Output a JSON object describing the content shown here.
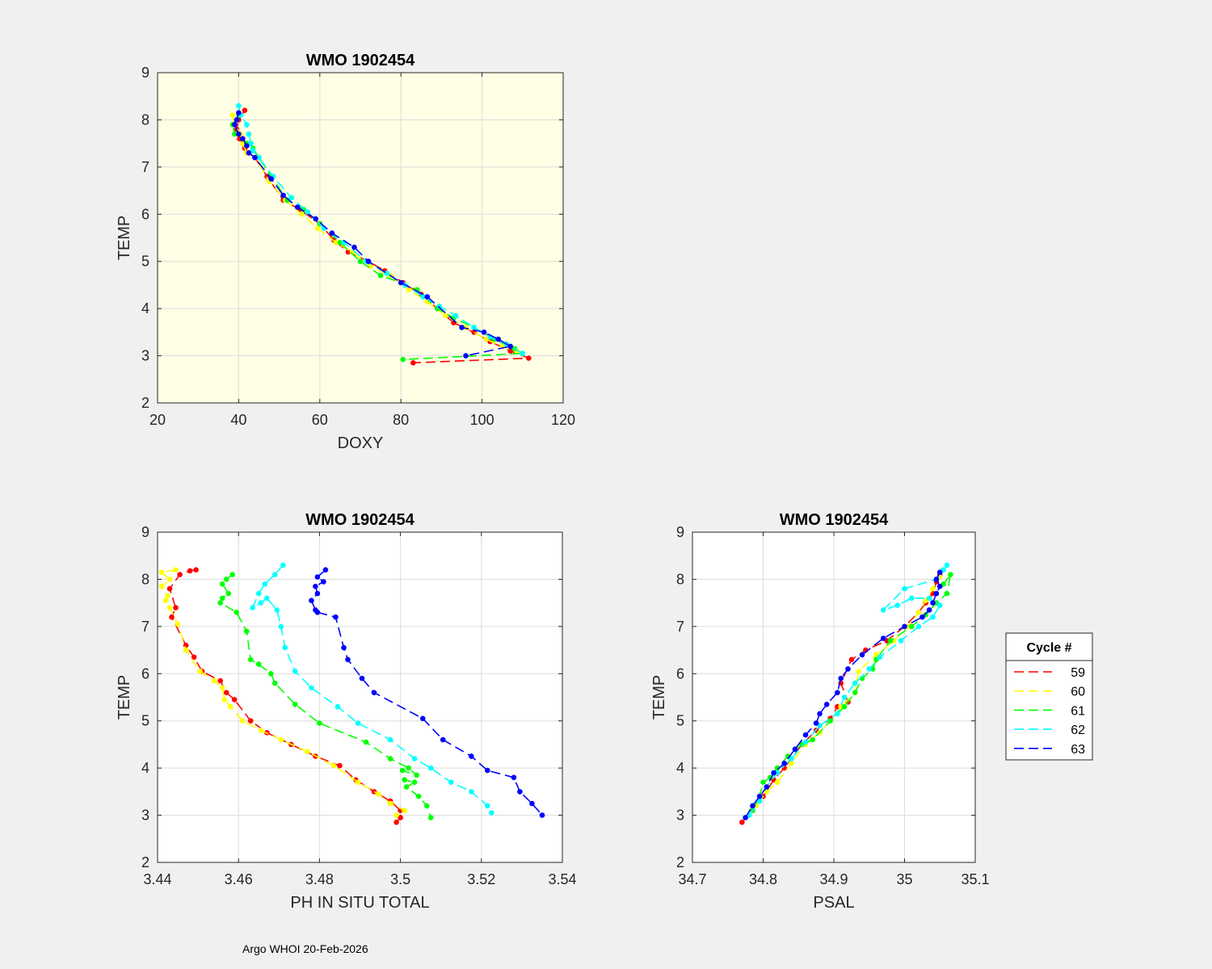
{
  "footer": "Argo WHOI 20-Feb-2026",
  "legend": {
    "title": "Cycle #",
    "entries": [
      {
        "label": "59",
        "color": "#ff0000"
      },
      {
        "label": "60",
        "color": "#ffff00"
      },
      {
        "label": "61",
        "color": "#00ff00"
      },
      {
        "label": "62",
        "color": "#00ffff"
      },
      {
        "label": "63",
        "color": "#0000ff"
      }
    ]
  },
  "chart_data": [
    {
      "type": "line",
      "title": "WMO 1902454",
      "xlabel": "DOXY",
      "ylabel": "TEMP",
      "xlim": [
        20,
        120
      ],
      "ylim": [
        2,
        9
      ],
      "xticks": [
        "20",
        "40",
        "60",
        "80",
        "100",
        "120"
      ],
      "yticks": [
        "2",
        "3",
        "4",
        "5",
        "6",
        "7",
        "8",
        "9"
      ],
      "background": "#ffffe5",
      "grid": true,
      "series": [
        {
          "name": "59",
          "color": "#ff0000",
          "x": [
            41.5,
            40.0,
            39.5,
            40.2,
            41.5,
            42.5,
            44.0,
            47.0,
            51.0,
            55.0,
            60.0,
            63.5,
            67.0,
            72.0,
            76.0,
            80.5,
            85.0,
            89.0,
            93.0,
            98.0,
            102.0,
            107.0,
            111.5,
            83.0
          ],
          "y": [
            8.2,
            8.0,
            7.8,
            7.6,
            7.4,
            7.3,
            7.2,
            6.8,
            6.3,
            6.1,
            5.8,
            5.45,
            5.2,
            5.0,
            4.8,
            4.55,
            4.3,
            4.0,
            3.7,
            3.5,
            3.3,
            3.1,
            2.95,
            2.85
          ]
        },
        {
          "name": "60",
          "color": "#ffff00",
          "x": [
            38.5,
            39.0,
            40.5,
            41.0,
            42.0,
            44.0,
            47.5,
            51.5,
            55.5,
            59.5,
            64.0,
            68.0,
            72.5,
            77.5,
            82.0,
            86.5,
            91.0,
            96.0,
            101.0,
            105.0,
            108.5
          ],
          "y": [
            8.1,
            7.9,
            7.7,
            7.5,
            7.3,
            7.2,
            6.7,
            6.3,
            6.0,
            5.7,
            5.4,
            5.2,
            4.9,
            4.7,
            4.4,
            4.15,
            3.85,
            3.6,
            3.35,
            3.2,
            3.1
          ]
        },
        {
          "name": "61",
          "color": "#00ff00",
          "x": [
            40.0,
            38.5,
            39.0,
            41.0,
            42.0,
            43.5,
            45.0,
            48.0,
            52.0,
            56.0,
            60.0,
            65.0,
            70.0,
            75.0,
            80.0,
            84.0,
            89.0,
            93.0,
            98.0,
            103.0,
            108.0,
            110.0,
            80.5
          ],
          "y": [
            8.1,
            7.9,
            7.7,
            7.6,
            7.5,
            7.4,
            7.2,
            6.8,
            6.3,
            6.1,
            5.8,
            5.4,
            5.0,
            4.7,
            4.55,
            4.4,
            4.0,
            3.8,
            3.6,
            3.35,
            3.15,
            3.05,
            2.92
          ]
        },
        {
          "name": "62",
          "color": "#00ffff",
          "x": [
            40.0,
            40.5,
            42.0,
            42.5,
            43.0,
            43.5,
            45.0,
            48.5,
            53.0,
            57.0,
            61.0,
            66.0,
            71.5,
            76.5,
            81.0,
            85.5,
            89.5,
            93.5,
            98.0,
            102.0,
            106.0,
            110.0
          ],
          "y": [
            8.3,
            8.1,
            7.9,
            7.7,
            7.5,
            7.35,
            7.2,
            6.8,
            6.35,
            6.05,
            5.7,
            5.4,
            5.0,
            4.75,
            4.5,
            4.25,
            4.05,
            3.85,
            3.6,
            3.4,
            3.25,
            3.05
          ]
        },
        {
          "name": "63",
          "color": "#0000ff",
          "x": [
            40.0,
            39.5,
            39.0,
            40.0,
            41.0,
            42.0,
            42.5,
            44.0,
            48.0,
            51.0,
            54.5,
            59.0,
            63.0,
            68.5,
            72.0,
            80.0,
            86.5,
            95.0,
            100.5,
            104.0,
            107.0,
            96.0
          ],
          "y": [
            8.15,
            8.0,
            7.9,
            7.7,
            7.6,
            7.45,
            7.3,
            7.2,
            6.75,
            6.4,
            6.15,
            5.9,
            5.6,
            5.3,
            5.0,
            4.55,
            4.25,
            3.6,
            3.5,
            3.35,
            3.2,
            3.0
          ]
        }
      ]
    },
    {
      "type": "line",
      "title": "WMO 1902454",
      "xlabel": "PH IN SITU TOTAL",
      "ylabel": "TEMP",
      "xlim": [
        3.44,
        3.54
      ],
      "ylim": [
        2,
        9
      ],
      "xticks": [
        "3.44",
        "3.46",
        "3.48",
        "3.5",
        "3.52",
        "3.54"
      ],
      "yticks": [
        "2",
        "3",
        "4",
        "5",
        "6",
        "7",
        "8",
        "9"
      ],
      "background": "#ffffff",
      "grid": true,
      "series": [
        {
          "name": "59",
          "color": "#ff0000",
          "x": [
            3.4495,
            3.448,
            3.4455,
            3.443,
            3.4445,
            3.4435,
            3.447,
            3.449,
            3.451,
            3.4555,
            3.457,
            3.459,
            3.463,
            3.467,
            3.473,
            3.479,
            3.485,
            3.489,
            3.4935,
            3.4975,
            3.5,
            3.5,
            3.499
          ],
          "y": [
            8.2,
            8.18,
            8.1,
            7.8,
            7.4,
            7.2,
            6.6,
            6.35,
            6.05,
            5.85,
            5.6,
            5.45,
            5.0,
            4.75,
            4.5,
            4.25,
            4.05,
            3.75,
            3.5,
            3.3,
            3.1,
            2.95,
            2.85
          ]
        },
        {
          "name": "60",
          "color": "#ffff00",
          "x": [
            3.4445,
            3.441,
            3.443,
            3.441,
            3.4425,
            3.442,
            3.443,
            3.445,
            3.447,
            3.4505,
            3.454,
            3.456,
            3.4565,
            3.458,
            3.461,
            3.4655,
            3.4705,
            3.477,
            3.4835,
            3.4895,
            3.4945,
            3.4975,
            3.501,
            3.499
          ],
          "y": [
            8.2,
            8.15,
            8.0,
            7.85,
            7.65,
            7.55,
            7.4,
            7.05,
            6.5,
            6.05,
            5.85,
            5.7,
            5.45,
            5.3,
            5.0,
            4.8,
            4.6,
            4.35,
            4.05,
            3.7,
            3.45,
            3.25,
            3.1,
            3.0
          ]
        },
        {
          "name": "61",
          "color": "#00ff00",
          "x": [
            3.4585,
            3.457,
            3.456,
            3.4575,
            3.456,
            3.4555,
            3.4595,
            3.462,
            3.463,
            3.465,
            3.468,
            3.469,
            3.474,
            3.48,
            3.4915,
            3.4975,
            3.502,
            3.504,
            3.5005,
            3.501,
            3.5035,
            3.5015,
            3.5045,
            3.5065,
            3.5075
          ],
          "y": [
            8.1,
            8.0,
            7.9,
            7.7,
            7.6,
            7.5,
            7.3,
            6.9,
            6.3,
            6.2,
            6.0,
            5.8,
            5.35,
            4.95,
            4.55,
            4.2,
            4.0,
            3.85,
            3.95,
            3.75,
            3.7,
            3.6,
            3.4,
            3.2,
            2.95
          ]
        },
        {
          "name": "62",
          "color": "#00ffff",
          "x": [
            3.471,
            3.469,
            3.4665,
            3.465,
            3.4635,
            3.4655,
            3.467,
            3.4695,
            3.4705,
            3.4715,
            3.474,
            3.478,
            3.4845,
            3.4895,
            3.4975,
            3.5035,
            3.5075,
            3.5125,
            3.5175,
            3.5215,
            3.5225
          ],
          "y": [
            8.3,
            8.1,
            7.9,
            7.7,
            7.4,
            7.5,
            7.6,
            7.35,
            7.0,
            6.55,
            6.05,
            5.7,
            5.3,
            4.95,
            4.6,
            4.2,
            4.0,
            3.7,
            3.5,
            3.2,
            3.05
          ]
        },
        {
          "name": "63",
          "color": "#0000ff",
          "x": [
            3.4815,
            3.4795,
            3.481,
            3.479,
            3.4795,
            3.478,
            3.479,
            3.4795,
            3.484,
            3.486,
            3.487,
            3.4905,
            3.4935,
            3.5055,
            3.5105,
            3.5175,
            3.5215,
            3.528,
            3.5295,
            3.5325,
            3.535
          ],
          "y": [
            8.2,
            8.05,
            7.95,
            7.85,
            7.7,
            7.55,
            7.35,
            7.3,
            7.2,
            6.55,
            6.3,
            5.9,
            5.6,
            5.05,
            4.6,
            4.25,
            3.95,
            3.8,
            3.5,
            3.25,
            3.0
          ]
        }
      ]
    },
    {
      "type": "line",
      "title": "WMO 1902454",
      "xlabel": "PSAL",
      "ylabel": "TEMP",
      "xlim": [
        34.7,
        35.1
      ],
      "ylim": [
        2,
        9
      ],
      "xticks": [
        "34.7",
        "34.8",
        "34.9",
        "35",
        "35.1"
      ],
      "yticks": [
        "2",
        "3",
        "4",
        "5",
        "6",
        "7",
        "8",
        "9"
      ],
      "background": "#ffffff",
      "grid": true,
      "series": [
        {
          "name": "59",
          "color": "#ff0000",
          "x": [
            34.77,
            34.785,
            34.8,
            34.815,
            34.83,
            34.855,
            34.875,
            34.895,
            34.905,
            34.92,
            34.91,
            34.925,
            34.945,
            34.975,
            35.0,
            35.02,
            35.03,
            35.04,
            35.045,
            35.05
          ],
          "y": [
            2.85,
            3.1,
            3.4,
            3.75,
            4.0,
            4.5,
            4.8,
            5.05,
            5.3,
            5.4,
            5.8,
            6.3,
            6.5,
            6.7,
            7.0,
            7.3,
            7.5,
            7.7,
            7.95,
            8.1
          ]
        },
        {
          "name": "60",
          "color": "#ffff00",
          "x": [
            34.78,
            34.79,
            34.805,
            34.82,
            34.84,
            34.86,
            34.88,
            34.895,
            34.91,
            34.93,
            34.935,
            34.96,
            34.985,
            35.005,
            35.02,
            35.03,
            35.04,
            35.05
          ],
          "y": [
            3.0,
            3.2,
            3.5,
            3.7,
            4.1,
            4.5,
            4.75,
            5.0,
            5.3,
            5.6,
            6.05,
            6.4,
            6.7,
            7.0,
            7.3,
            7.55,
            7.8,
            8.05
          ]
        },
        {
          "name": "61",
          "color": "#00ff00",
          "x": [
            34.785,
            34.795,
            34.8,
            34.81,
            34.82,
            34.835,
            34.855,
            34.87,
            34.895,
            34.915,
            34.93,
            34.94,
            34.955,
            34.96,
            34.98,
            35.01,
            35.03,
            35.045,
            35.06,
            35.065,
            35.055
          ],
          "y": [
            3.1,
            3.4,
            3.7,
            3.8,
            4.0,
            4.25,
            4.5,
            4.6,
            5.0,
            5.3,
            5.6,
            5.9,
            6.1,
            6.3,
            6.7,
            7.0,
            7.25,
            7.5,
            7.7,
            8.1,
            7.9
          ]
        },
        {
          "name": "62",
          "color": "#00ffff",
          "x": [
            34.78,
            34.795,
            34.805,
            34.82,
            34.84,
            34.86,
            34.88,
            34.905,
            34.915,
            34.93,
            34.95,
            34.965,
            34.995,
            35.02,
            35.04,
            35.05,
            35.035,
            35.01,
            34.99,
            34.97,
            35.0,
            35.045,
            35.055,
            35.06
          ],
          "y": [
            3.0,
            3.3,
            3.6,
            3.9,
            4.2,
            4.55,
            4.9,
            5.15,
            5.5,
            5.8,
            6.1,
            6.35,
            6.7,
            7.0,
            7.2,
            7.45,
            7.6,
            7.6,
            7.45,
            7.35,
            7.8,
            8.0,
            8.2,
            8.3
          ]
        },
        {
          "name": "63",
          "color": "#0000ff",
          "x": [
            34.775,
            34.785,
            34.795,
            34.805,
            34.815,
            34.83,
            34.845,
            34.86,
            34.875,
            34.88,
            34.89,
            34.905,
            34.91,
            34.92,
            34.94,
            34.97,
            35.0,
            35.025,
            35.035,
            35.04,
            35.045,
            35.05,
            35.045,
            35.05
          ],
          "y": [
            2.95,
            3.2,
            3.4,
            3.6,
            3.9,
            4.1,
            4.4,
            4.7,
            4.95,
            5.15,
            5.35,
            5.6,
            5.9,
            6.1,
            6.4,
            6.75,
            7.0,
            7.2,
            7.35,
            7.5,
            7.7,
            7.85,
            8.0,
            8.15
          ]
        }
      ]
    }
  ]
}
